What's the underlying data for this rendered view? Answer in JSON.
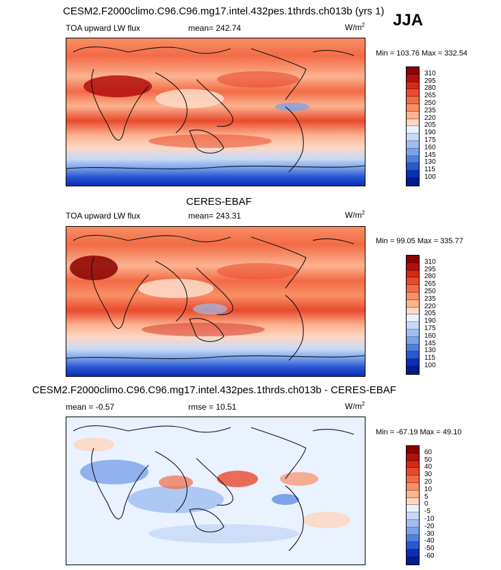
{
  "season": "JJA",
  "panels": [
    {
      "id": "model",
      "title": "CESM2.F2000climo.C96.C96.mg17.intel.432pes.1thrds.ch013b (yrs 1)",
      "left_label": "TOA upward LW flux",
      "mid_label": "mean= 242.74",
      "units": "W/m",
      "units_sup": "2",
      "minmax": "Min = 103.76 Max = 332.54",
      "colorbar_levels": [
        "310",
        "295",
        "280",
        "265",
        "250",
        "235",
        "220",
        "205",
        "190",
        "175",
        "160",
        "145",
        "130",
        "115",
        "100"
      ],
      "colorbar_colors": [
        "#8b0000",
        "#b3110e",
        "#d42a1c",
        "#e94a2e",
        "#f26b46",
        "#f88f66",
        "#fcb391",
        "#fdd8c3",
        "#eaf1ff",
        "#c6d9f7",
        "#9ebef0",
        "#7aa2ea",
        "#4f80e0",
        "#2a57d2",
        "#0b2eb8",
        "#001a8f"
      ]
    },
    {
      "id": "obs",
      "title": "CERES-EBAF",
      "left_label": "TOA upward LW flux",
      "mid_label": "mean= 243.31",
      "units": "W/m",
      "units_sup": "2",
      "minmax": "Min =  99.05 Max = 335.77",
      "colorbar_levels": [
        "310",
        "295",
        "280",
        "265",
        "250",
        "235",
        "220",
        "205",
        "190",
        "175",
        "160",
        "145",
        "130",
        "115",
        "100"
      ],
      "colorbar_colors": [
        "#8b0000",
        "#b3110e",
        "#d42a1c",
        "#e94a2e",
        "#f26b46",
        "#f88f66",
        "#fcb391",
        "#fdd8c3",
        "#eaf1ff",
        "#c6d9f7",
        "#9ebef0",
        "#7aa2ea",
        "#4f80e0",
        "#2a57d2",
        "#0b2eb8",
        "#001a8f"
      ]
    },
    {
      "id": "diff",
      "title": "CESM2.F2000climo.C96.C96.mg17.intel.432pes.1thrds.ch013b - CERES-EBAF",
      "left_label": "mean =  -0.57",
      "mid_label": "rmse =  10.51",
      "units": "W/m",
      "units_sup": "2",
      "minmax": "Min = -67.19 Max =  49.10",
      "colorbar_levels": [
        "60",
        "50",
        "40",
        "30",
        "20",
        "10",
        "5",
        "0",
        "-5",
        "-10",
        "-20",
        "-30",
        "-40",
        "-50",
        "-60"
      ],
      "colorbar_colors": [
        "#8b0000",
        "#b3110e",
        "#d42a1c",
        "#e94a2e",
        "#f26b46",
        "#f88f66",
        "#fcb391",
        "#fdd8c3",
        "#eaf1ff",
        "#c6d9f7",
        "#9ebef0",
        "#7aa2ea",
        "#4f80e0",
        "#2a57d2",
        "#0b2eb8",
        "#001a8f"
      ]
    }
  ]
}
